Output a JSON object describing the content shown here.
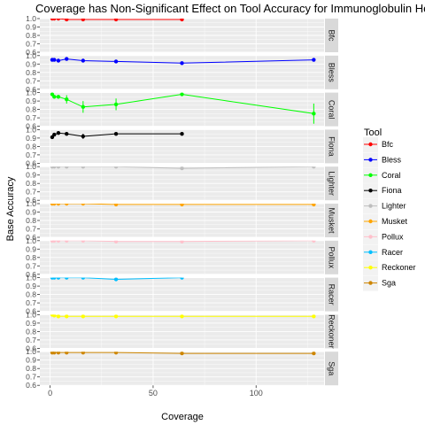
{
  "chart_data": {
    "type": "line",
    "title": "Coverage has Non-Significant Effect on Tool Accuracy for Immunoglobulin He",
    "xlabel": "Coverage",
    "ylabel": "Base Accuracy",
    "xlim": [
      -5,
      133
    ],
    "ylim": [
      0.6,
      1.0
    ],
    "x_ticks": [
      0,
      50,
      100
    ],
    "y_ticks": [
      0.6,
      0.7,
      0.8,
      0.9,
      1.0
    ],
    "y_tick_labels": [
      "0.6",
      "0.7",
      "0.8",
      "0.9",
      "1.0"
    ],
    "grid": true,
    "legend": {
      "title": "Tool",
      "position": "right"
    },
    "series": [
      {
        "name": "Bfc",
        "color": "#FF0000",
        "x": [
          1,
          2,
          4,
          8,
          16,
          32,
          64
        ],
        "y": [
          1.0,
          1.0,
          1.0,
          0.99,
          0.99,
          0.99,
          0.99
        ],
        "err": [
          0,
          0,
          0,
          0,
          0,
          0,
          0
        ]
      },
      {
        "name": "Bless",
        "color": "#0000FF",
        "x": [
          1,
          2,
          4,
          8,
          16,
          32,
          64,
          128
        ],
        "y": [
          0.95,
          0.95,
          0.94,
          0.96,
          0.94,
          0.93,
          0.91,
          0.95
        ],
        "err": [
          0,
          0,
          0,
          0,
          0,
          0,
          0,
          0
        ]
      },
      {
        "name": "Coral",
        "color": "#00FF00",
        "x": [
          1,
          2,
          4,
          8,
          16,
          32,
          64,
          128
        ],
        "y": [
          0.98,
          0.95,
          0.95,
          0.92,
          0.83,
          0.86,
          0.98,
          0.75
        ],
        "err": [
          0.02,
          0.02,
          0.02,
          0.05,
          0.07,
          0.07,
          0.01,
          0.12
        ]
      },
      {
        "name": "Fiona",
        "color": "#000000",
        "x": [
          1,
          2,
          4,
          8,
          16,
          32,
          64
        ],
        "y": [
          0.91,
          0.94,
          0.96,
          0.95,
          0.92,
          0.95,
          0.95
        ],
        "err": [
          0.01,
          0.01,
          0.01,
          0.01,
          0.03,
          0.01,
          0.01
        ]
      },
      {
        "name": "Lighter",
        "color": "#BEBEBE",
        "x": [
          1,
          2,
          4,
          8,
          16,
          32,
          64,
          128
        ],
        "y": [
          1.0,
          1.0,
          1.0,
          1.0,
          1.0,
          1.0,
          0.98,
          1.0
        ],
        "err": [
          0,
          0,
          0,
          0,
          0,
          0,
          0,
          0
        ]
      },
      {
        "name": "Musket",
        "color": "#FFA500",
        "x": [
          1,
          2,
          4,
          8,
          16,
          32,
          64,
          128
        ],
        "y": [
          1.0,
          1.0,
          1.0,
          1.0,
          1.0,
          0.99,
          0.99,
          0.99
        ],
        "err": [
          0,
          0,
          0,
          0,
          0,
          0,
          0,
          0
        ]
      },
      {
        "name": "Pollux",
        "color": "#FFC0CB",
        "x": [
          1,
          2,
          4,
          8,
          16,
          32,
          64,
          128
        ],
        "y": [
          1.0,
          1.0,
          1.0,
          1.0,
          1.0,
          0.99,
          0.99,
          1.0
        ],
        "err": [
          0,
          0,
          0,
          0,
          0,
          0,
          0,
          0
        ]
      },
      {
        "name": "Racer",
        "color": "#00BFFF",
        "x": [
          1,
          2,
          4,
          8,
          16,
          32,
          64
        ],
        "y": [
          1.0,
          1.0,
          1.0,
          1.0,
          1.0,
          0.98,
          1.0
        ],
        "err": [
          0,
          0,
          0,
          0,
          0,
          0,
          0
        ]
      },
      {
        "name": "Reckoner",
        "color": "#FFFF00",
        "x": [
          1,
          2,
          4,
          8,
          16,
          32,
          64,
          128
        ],
        "y": [
          1.0,
          0.99,
          0.98,
          0.98,
          0.98,
          0.98,
          0.98,
          0.98
        ],
        "err": [
          0,
          0,
          0,
          0,
          0,
          0,
          0,
          0
        ]
      },
      {
        "name": "Sga",
        "color": "#CD8500",
        "x": [
          1,
          2,
          4,
          8,
          16,
          32,
          64,
          128
        ],
        "y": [
          0.99,
          0.99,
          0.99,
          0.99,
          0.99,
          0.99,
          0.98,
          0.98
        ],
        "err": [
          0,
          0,
          0,
          0,
          0,
          0,
          0,
          0
        ]
      }
    ]
  }
}
